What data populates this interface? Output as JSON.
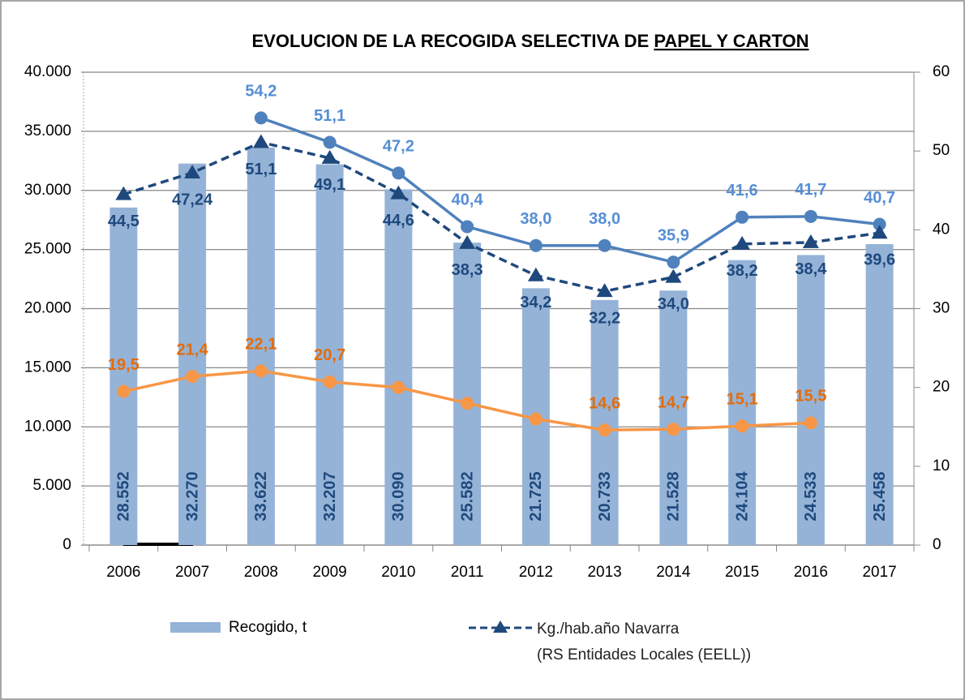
{
  "chart_data": {
    "type": "bar",
    "title": [
      "EVOLUCION DE LA RECOGIDA SELECTIVA DE ",
      "PAPEL Y CARTON"
    ],
    "categories": [
      "2006",
      "2007",
      "2008",
      "2009",
      "2010",
      "2011",
      "2012",
      "2013",
      "2014",
      "2015",
      "2016",
      "2017"
    ],
    "series": [
      {
        "name": "Recogido, t",
        "type": "bar",
        "color": "#95b3d7",
        "values": [
          28552,
          32270,
          33622,
          32207,
          30090,
          25582,
          21725,
          20733,
          21528,
          24104,
          24533,
          25458
        ],
        "value_labels": [
          "28.552",
          "32.270",
          "33.622",
          "32.207",
          "30.090",
          "25.582",
          "21.725",
          "20.733",
          "21.528",
          "24.104",
          "24.533",
          "25.458"
        ]
      },
      {
        "type": "line",
        "axis": "y2",
        "color": "#4f81bd",
        "label_color": "#558ed5",
        "marker": "circle",
        "values": [
          null,
          null,
          54.2,
          51.1,
          47.2,
          40.4,
          38.0,
          38.0,
          35.9,
          41.6,
          41.7,
          40.7
        ],
        "value_labels": [
          null,
          null,
          "54,2",
          "51,1",
          "47,2",
          "40,4",
          "38,0",
          "38,0",
          "35,9",
          "41,6",
          "41,7",
          "40,7"
        ]
      },
      {
        "name": "Kg./hab.año Navarra\n(RS Entidades Locales (EELL))",
        "type": "line",
        "axis": "y2",
        "color": "#1f497d",
        "dashed": true,
        "marker": "triangle",
        "values": [
          44.5,
          47.24,
          51.1,
          49.1,
          44.6,
          38.3,
          34.2,
          32.2,
          34.0,
          38.2,
          38.4,
          39.6
        ],
        "value_labels": [
          "44,5",
          "47,24",
          "51,1",
          "49,1",
          "44,6",
          "38,3",
          "34,2",
          "32,2",
          "34,0",
          "38,2",
          "38,4",
          "39,6"
        ]
      },
      {
        "type": "line",
        "axis": "y2",
        "color": "#f79646",
        "label_color": "#e46c0a",
        "marker": "circle",
        "values": [
          19.5,
          21.4,
          22.1,
          20.7,
          20,
          18,
          16,
          14.6,
          14.7,
          15.1,
          15.5,
          null
        ],
        "value_labels": [
          "19,5",
          "21,4",
          "22,1",
          "20,7",
          null,
          null,
          null,
          "14,6",
          "14,7",
          "15,1",
          "15,5",
          null
        ]
      }
    ],
    "ylim": [
      0,
      40000
    ],
    "yticks": [
      0,
      {
        "value": 5000,
        "label": "5.000"
      },
      {
        "value": 10000,
        "label": "10.000"
      },
      {
        "value": 15000,
        "label": "15.000"
      },
      {
        "value": 20000,
        "label": "20.000"
      },
      {
        "value": 25000,
        "label": "25.000"
      },
      {
        "value": 30000,
        "label": "30.000"
      },
      {
        "value": 35000,
        "label": "35.000"
      },
      {
        "value": 40000,
        "label": "40.000"
      }
    ],
    "y2lim": [
      0,
      60
    ],
    "y2ticks": [
      0,
      10,
      20,
      30,
      40,
      50,
      60
    ],
    "grid": true
  }
}
